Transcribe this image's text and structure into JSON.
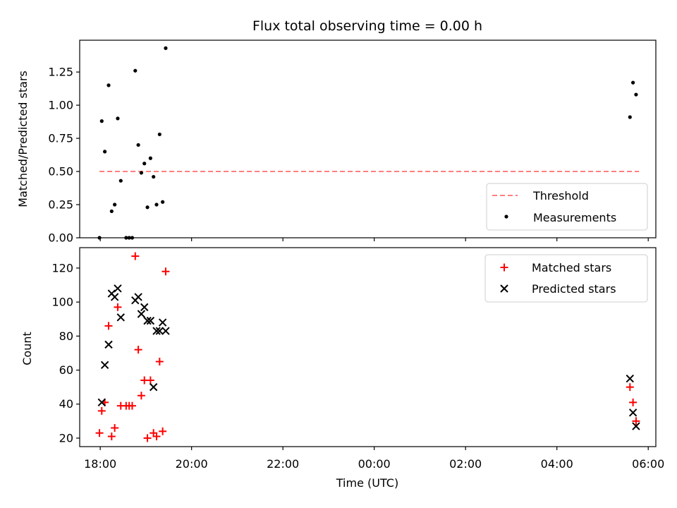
{
  "title": "Flux total observing time = 0.00 h",
  "chart_data": [
    {
      "type": "scatter",
      "panel": "top",
      "ylabel": "Matched/Predicted stars",
      "ylim": [
        0,
        1.49
      ],
      "yticks": [
        0.0,
        0.25,
        0.5,
        0.75,
        1.0,
        1.25
      ],
      "yticklabels": [
        "0.00",
        "0.25",
        "0.50",
        "0.75",
        "1.00",
        "1.25"
      ],
      "legend_position": "lower-right",
      "threshold": {
        "name": "Threshold",
        "value": 0.5,
        "x_start": "17:59",
        "x_end": "05:48",
        "color": "#ff7f7f"
      },
      "series": [
        {
          "name": "Measurements",
          "color": "#000000",
          "marker": "dot",
          "points": [
            [
              "17:59",
              0.0
            ],
            [
              "18:02",
              0.88
            ],
            [
              "18:06",
              0.65
            ],
            [
              "18:11",
              1.15
            ],
            [
              "18:15",
              0.2
            ],
            [
              "18:19",
              0.25
            ],
            [
              "18:23",
              0.9
            ],
            [
              "18:27",
              0.43
            ],
            [
              "18:34",
              0.0
            ],
            [
              "18:38",
              0.0
            ],
            [
              "18:42",
              0.0
            ],
            [
              "18:46",
              1.26
            ],
            [
              "18:50",
              0.7
            ],
            [
              "18:54",
              0.49
            ],
            [
              "18:58",
              0.56
            ],
            [
              "19:02",
              0.23
            ],
            [
              "19:06",
              0.6
            ],
            [
              "19:10",
              0.46
            ],
            [
              "19:14",
              0.25
            ],
            [
              "19:18",
              0.78
            ],
            [
              "19:22",
              0.27
            ],
            [
              "19:26",
              1.43
            ],
            [
              "05:36",
              0.91
            ],
            [
              "05:40",
              1.17
            ],
            [
              "05:44",
              1.08
            ]
          ]
        }
      ]
    },
    {
      "type": "scatter",
      "panel": "bottom",
      "xlabel": "Time (UTC)",
      "ylabel": "Count",
      "ylim": [
        15,
        132
      ],
      "yticks": [
        20,
        40,
        60,
        80,
        100,
        120
      ],
      "yticklabels": [
        "20",
        "40",
        "60",
        "80",
        "100",
        "120"
      ],
      "xticks": [
        "18:00",
        "20:00",
        "22:00",
        "00:00",
        "02:00",
        "04:00",
        "06:00"
      ],
      "xlim": [
        "17:33",
        "06:10"
      ],
      "legend_position": "upper-right",
      "series": [
        {
          "name": "Matched stars",
          "color": "#ff0000",
          "marker": "plus",
          "points": [
            [
              "17:59",
              23
            ],
            [
              "18:02",
              36
            ],
            [
              "18:06",
              41
            ],
            [
              "18:11",
              86
            ],
            [
              "18:15",
              21
            ],
            [
              "18:19",
              26
            ],
            [
              "18:23",
              97
            ],
            [
              "18:27",
              39
            ],
            [
              "18:34",
              39
            ],
            [
              "18:38",
              39
            ],
            [
              "18:42",
              39
            ],
            [
              "18:46",
              127
            ],
            [
              "18:50",
              72
            ],
            [
              "18:54",
              45
            ],
            [
              "18:58",
              54
            ],
            [
              "19:02",
              20
            ],
            [
              "19:06",
              54
            ],
            [
              "19:10",
              23
            ],
            [
              "19:14",
              21
            ],
            [
              "19:18",
              65
            ],
            [
              "19:22",
              24
            ],
            [
              "19:26",
              118
            ],
            [
              "05:36",
              50
            ],
            [
              "05:40",
              41
            ],
            [
              "05:44",
              30
            ]
          ]
        },
        {
          "name": "Predicted stars",
          "color": "#000000",
          "marker": "x",
          "points": [
            [
              "18:02",
              41
            ],
            [
              "18:06",
              63
            ],
            [
              "18:11",
              75
            ],
            [
              "18:15",
              105
            ],
            [
              "18:19",
              103
            ],
            [
              "18:23",
              108
            ],
            [
              "18:27",
              91
            ],
            [
              "18:46",
              101
            ],
            [
              "18:50",
              103
            ],
            [
              "18:54",
              93
            ],
            [
              "18:58",
              97
            ],
            [
              "19:02",
              89
            ],
            [
              "19:06",
              89
            ],
            [
              "19:10",
              50
            ],
            [
              "19:14",
              83
            ],
            [
              "19:18",
              83
            ],
            [
              "19:22",
              88
            ],
            [
              "19:26",
              83
            ],
            [
              "05:36",
              55
            ],
            [
              "05:40",
              35
            ],
            [
              "05:44",
              27
            ]
          ]
        }
      ]
    }
  ]
}
